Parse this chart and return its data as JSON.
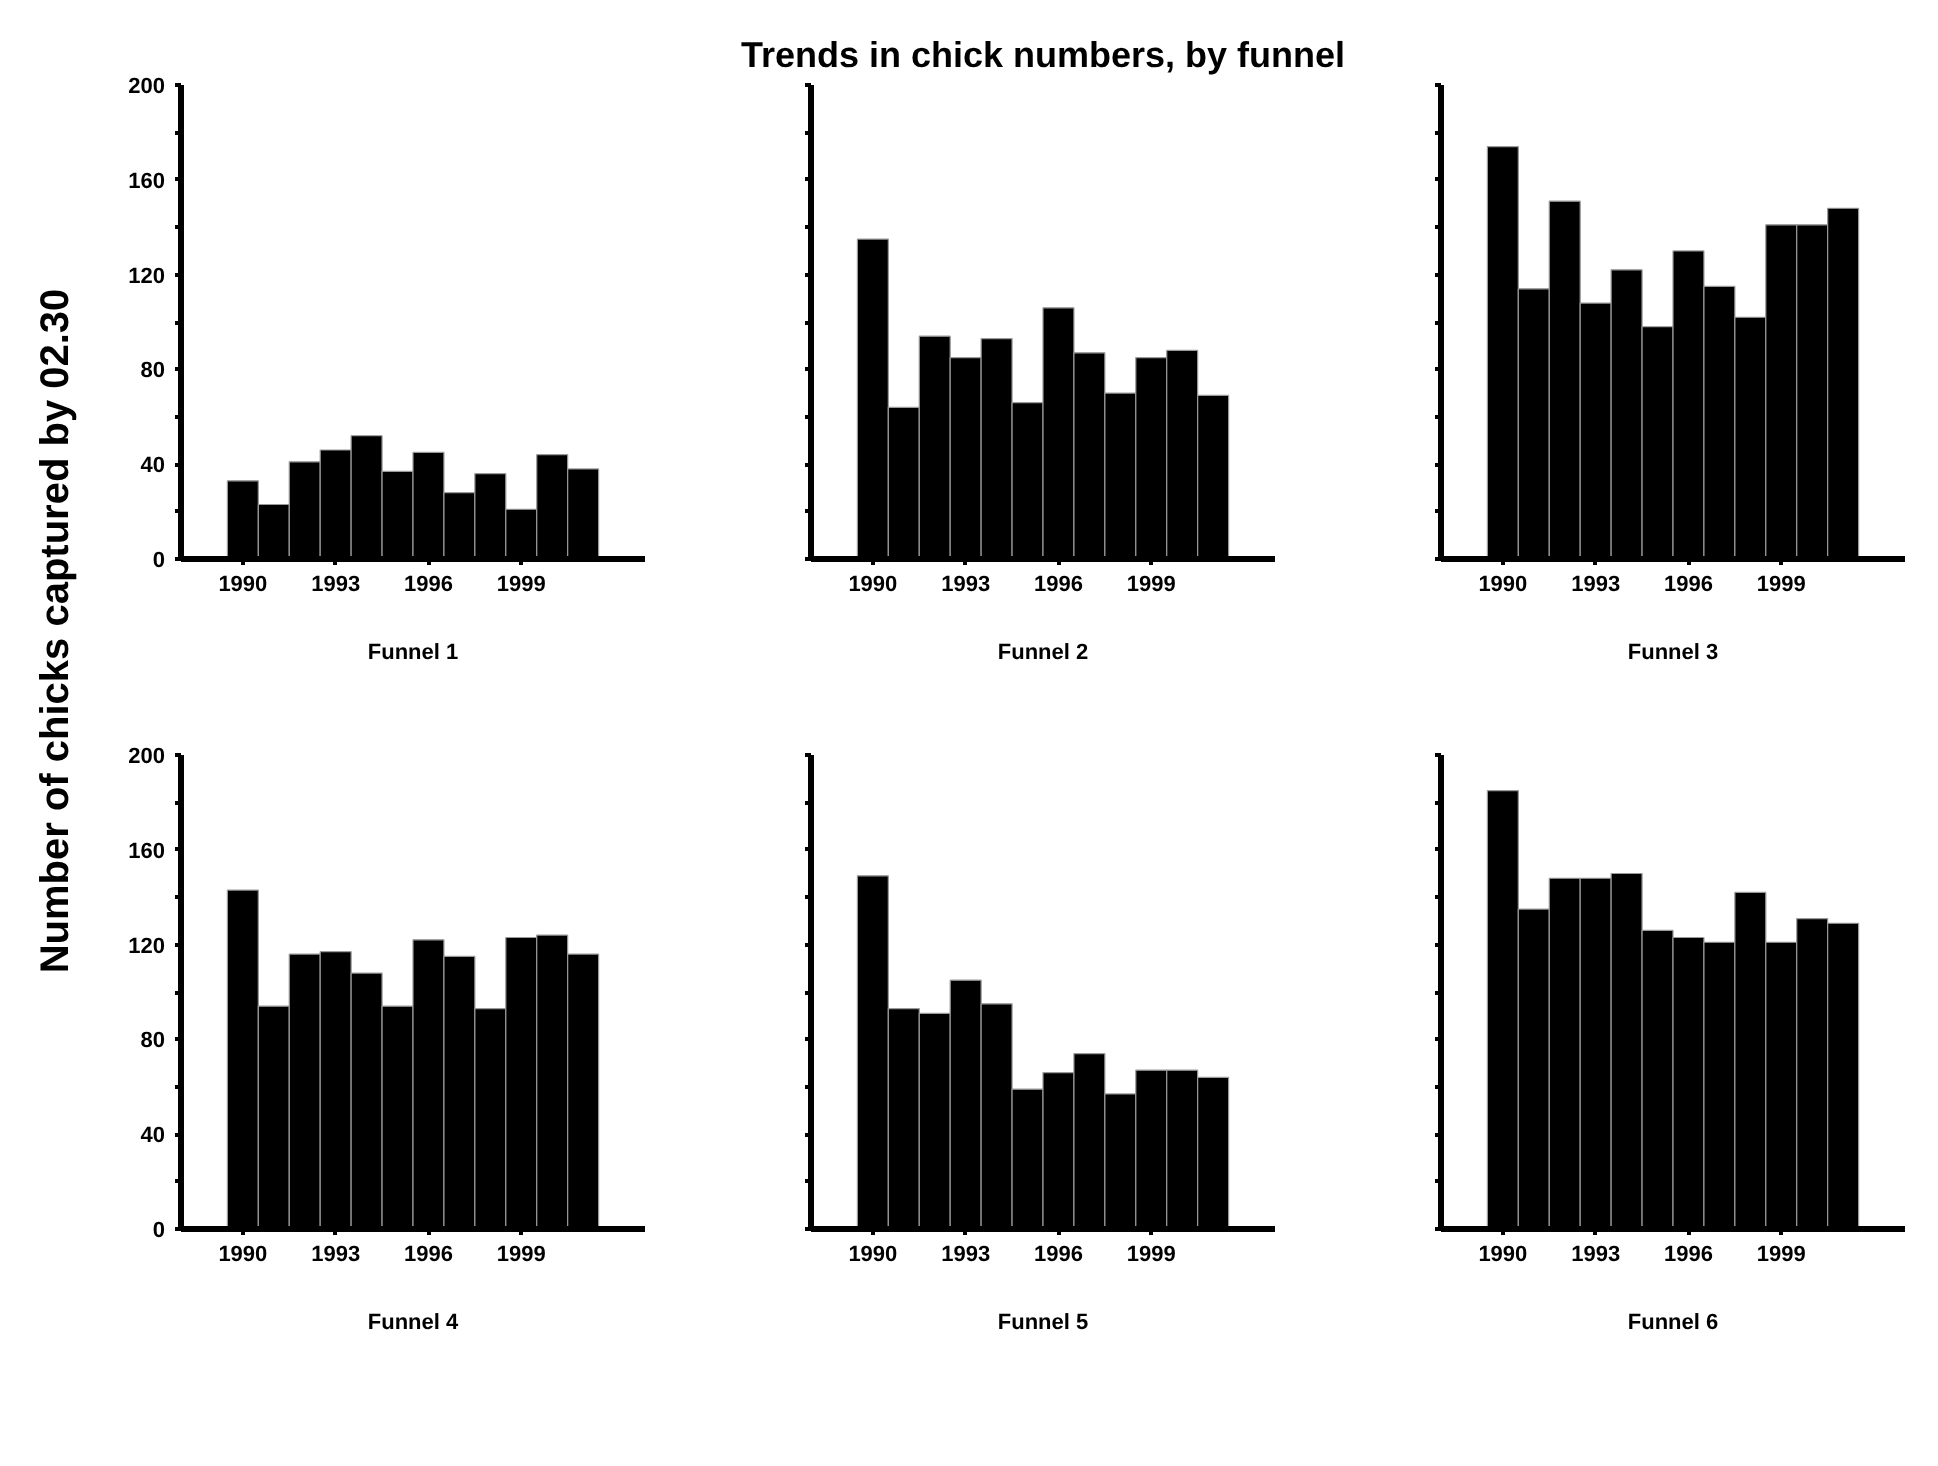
{
  "chart_data": [
    {
      "type": "bar",
      "ylabel": "Number of chicks captured by 02.30",
      "xlabel": "Funnel 1",
      "x": [
        1990,
        1991,
        1992,
        1993,
        1994,
        1995,
        1996,
        1997,
        1998,
        1999,
        2000,
        2001
      ],
      "values": [
        33,
        23,
        41,
        46,
        52,
        37,
        45,
        28,
        36,
        21,
        44,
        38
      ],
      "color": "#000000",
      "xlim": [
        1988,
        2003
      ],
      "xticks": [
        1990,
        1993,
        1996,
        1999
      ],
      "ylim": [
        0,
        200
      ],
      "yticks": [
        0,
        {
          "value": 20,
          "label": null
        },
        40,
        {
          "value": 60,
          "label": null
        },
        80,
        {
          "value": 100,
          "label": null
        },
        120,
        {
          "value": 140,
          "label": null
        },
        160,
        {
          "value": 180,
          "label": null
        },
        200
      ]
    },
    {
      "type": "bar",
      "title": "Trends in chick numbers, by funnel",
      "xlabel": "Funnel 2",
      "x": [
        1990,
        1991,
        1992,
        1993,
        1994,
        1995,
        1996,
        1997,
        1998,
        1999,
        2000,
        2001
      ],
      "values": [
        135,
        64,
        94,
        85,
        93,
        66,
        106,
        87,
        70,
        85,
        88,
        69
      ],
      "color": "#000000",
      "xlim": [
        1988,
        2003
      ],
      "xticks": [
        1990,
        1993,
        1996,
        1999
      ],
      "ylim": [
        0,
        200
      ],
      "yticks": [
        0,
        {
          "value": 20,
          "label": null
        },
        40,
        {
          "value": 60,
          "label": null
        },
        80,
        {
          "value": 100,
          "label": null
        },
        120,
        {
          "value": 140,
          "label": null
        },
        160,
        {
          "value": 180,
          "label": null
        },
        200
      ],
      "tick_labels": "x"
    },
    {
      "type": "bar",
      "xlabel": "Funnel 3",
      "x": [
        1990,
        1991,
        1992,
        1993,
        1994,
        1995,
        1996,
        1997,
        1998,
        1999,
        2000,
        2001
      ],
      "values": [
        174,
        114,
        151,
        108,
        122,
        98,
        130,
        115,
        102,
        141,
        141,
        148
      ],
      "color": "#000000",
      "xlim": [
        1988,
        2003
      ],
      "xticks": [
        1990,
        1993,
        1996,
        1999
      ],
      "ylim": [
        0,
        200
      ],
      "yticks": [
        0,
        {
          "value": 20,
          "label": null
        },
        40,
        {
          "value": 60,
          "label": null
        },
        80,
        {
          "value": 100,
          "label": null
        },
        120,
        {
          "value": 140,
          "label": null
        },
        160,
        {
          "value": 180,
          "label": null
        },
        200
      ],
      "tick_labels": "x"
    },
    {
      "type": "bar",
      "xlabel": "Funnel 4",
      "x": [
        1990,
        1991,
        1992,
        1993,
        1994,
        1995,
        1996,
        1997,
        1998,
        1999,
        2000,
        2001
      ],
      "values": [
        143,
        94,
        116,
        117,
        108,
        94,
        122,
        115,
        93,
        123,
        124,
        116
      ],
      "color": "#000000",
      "xlim": [
        1988,
        2003
      ],
      "xticks": [
        1990,
        1993,
        1996,
        1999
      ],
      "ylim": [
        0,
        200
      ],
      "yticks": [
        0,
        {
          "value": 20,
          "label": null
        },
        40,
        {
          "value": 60,
          "label": null
        },
        80,
        {
          "value": 100,
          "label": null
        },
        120,
        {
          "value": 140,
          "label": null
        },
        160,
        {
          "value": 180,
          "label": null
        },
        200
      ]
    },
    {
      "type": "bar",
      "xlabel": "Funnel 5",
      "x": [
        1990,
        1991,
        1992,
        1993,
        1994,
        1995,
        1996,
        1997,
        1998,
        1999,
        2000,
        2001
      ],
      "values": [
        149,
        93,
        91,
        105,
        95,
        59,
        66,
        74,
        57,
        67,
        67,
        64
      ],
      "color": "#000000",
      "xlim": [
        1988,
        2003
      ],
      "xticks": [
        1990,
        1993,
        1996,
        1999
      ],
      "ylim": [
        0,
        200
      ],
      "yticks": [
        0,
        {
          "value": 20,
          "label": null
        },
        40,
        {
          "value": 60,
          "label": null
        },
        80,
        {
          "value": 100,
          "label": null
        },
        120,
        {
          "value": 140,
          "label": null
        },
        160,
        {
          "value": 180,
          "label": null
        },
        200
      ],
      "tick_labels": "x"
    },
    {
      "type": "bar",
      "xlabel": "Funnel 6",
      "x": [
        1990,
        1991,
        1992,
        1993,
        1994,
        1995,
        1996,
        1997,
        1998,
        1999,
        2000,
        2001
      ],
      "values": [
        185,
        135,
        148,
        148,
        150,
        126,
        123,
        121,
        142,
        121,
        131,
        129
      ],
      "color": "#000000",
      "xlim": [
        1988,
        2003
      ],
      "xticks": [
        1990,
        1993,
        1996,
        1999
      ],
      "ylim": [
        0,
        200
      ],
      "yticks": [
        0,
        {
          "value": 20,
          "label": null
        },
        40,
        {
          "value": 60,
          "label": null
        },
        80,
        {
          "value": 100,
          "label": null
        },
        120,
        {
          "value": 140,
          "label": null
        },
        160,
        {
          "value": 180,
          "label": null
        },
        200
      ],
      "tick_labels": "x"
    }
  ]
}
